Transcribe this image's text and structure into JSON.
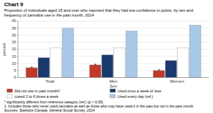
{
  "chart_data": {
    "type": "bar",
    "title": "Chart 9",
    "subtitle": "Proportion of individuals aged 15 and over who reported that they had low confidence in police, by sex and frequency of cannabis use in the past month, 2014",
    "x_label": "Sex",
    "y_label": "percent",
    "categories": [
      "Total",
      "Men",
      "Women"
    ],
    "series": [
      {
        "name": "Did not use in past month¹/",
        "color": "#c0392b",
        "values": [
          7,
          9,
          5
        ]
      },
      {
        "name": "Used once a week or less",
        "color": "#1a3a6e",
        "values": [
          14,
          16,
          12
        ]
      },
      {
        "name": "cused 2 to 6 times a week",
        "color": "#ffffff",
        "values": [
          21,
          21,
          21
        ]
      },
      {
        "name": "Used every day (ref.)",
        "color": "#a8c8e8",
        "values": [
          35,
          33,
          37
        ]
      }
    ],
    "annotations": [
      {
        "text": "*",
        "series": "Did not use in past month¹/",
        "category": "Total"
      },
      {
        "text": "*",
        "series": "Did not use in past month¹/",
        "category": "Men"
      },
      {
        "text": "*",
        "series": "Did not use in past month¹/",
        "category": "Women"
      }
    ],
    "ylim": [
      0,
      40
    ],
    "yticks": [
      0,
      5,
      10,
      15,
      20,
      25,
      30,
      35,
      40
    ],
    "grid": true,
    "notes": [
      "* significantly different from reference category (ref.) (p < 0.05)",
      "1. Includes those who never used cannabis as well as those who may have used it in the past but not in the past month."
    ],
    "source": "Sources: Statistics Canada, General Social Survey, 2014."
  }
}
